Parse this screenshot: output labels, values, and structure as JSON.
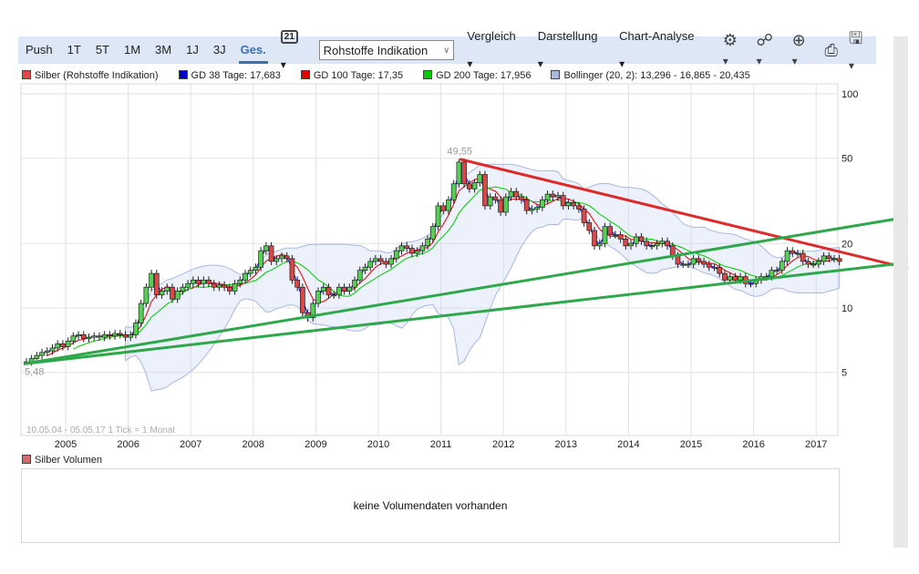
{
  "toolbar": {
    "ranges": [
      "Push",
      "1T",
      "5T",
      "1M",
      "3M",
      "1J",
      "3J",
      "Ges."
    ],
    "active": "Ges.",
    "calendar_day": "21",
    "select_value": "Rohstoffe Indikation",
    "menus": [
      "Vergleich",
      "Darstellung",
      "Chart-Analyse"
    ]
  },
  "legend": [
    {
      "label": "Silber (Rohstoffe Indikation)",
      "color": "#e04848"
    },
    {
      "label": "GD 38 Tage: 17,683",
      "color": "#0000cc"
    },
    {
      "label": "GD 100 Tage: 17,35",
      "color": "#e00000"
    },
    {
      "label": "GD 200 Tage: 17,956",
      "color": "#00cc00"
    },
    {
      "label": "Bollinger (20, 2): 13,296 - 16,865 - 20,435",
      "color": "#a8b8e0"
    }
  ],
  "volume": {
    "title": "Silber Volumen",
    "message": "keine Volumendaten vorhanden"
  },
  "chart_data": {
    "type": "candlestick",
    "scale": "log",
    "range_label": "10.05.04 - 05.05.17",
    "tick_label": "1 Tick = 1 Monat",
    "y_ticks": [
      100,
      50,
      20,
      10,
      5
    ],
    "x_ticks": [
      2005,
      2006,
      2007,
      2008,
      2009,
      2010,
      2011,
      2012,
      2013,
      2014,
      2015,
      2016,
      2017
    ],
    "max_label": "49,55",
    "max_value": 49.55,
    "max_date": 2011.3,
    "min_label": "5,48",
    "min_value": 5.48,
    "start": 2004.33,
    "monthly_close": [
      5.6,
      5.8,
      6.0,
      6.2,
      6.3,
      6.5,
      6.8,
      6.6,
      7.0,
      7.4,
      7.5,
      7.2,
      7.3,
      7.4,
      7.3,
      7.5,
      7.4,
      7.6,
      7.5,
      7.3,
      7.5,
      8.5,
      10.5,
      12.5,
      14.5,
      11.5,
      12.0,
      12.5,
      11.0,
      12.0,
      12.5,
      13.0,
      13.5,
      13.0,
      13.5,
      13.0,
      12.5,
      12.8,
      12.5,
      12.0,
      13.0,
      13.5,
      14.5,
      15.0,
      15.5,
      18.5,
      19.5,
      16.5,
      17.0,
      17.5,
      17.0,
      13.5,
      12.5,
      9.5,
      9.0,
      10.5,
      12.0,
      12.5,
      11.5,
      11.5,
      12.5,
      12.0,
      12.5,
      13.5,
      15.0,
      15.5,
      16.5,
      17.0,
      16.5,
      16.0,
      17.0,
      18.5,
      19.5,
      19.0,
      18.0,
      18.5,
      19.5,
      21.0,
      24.0,
      30.0,
      28.5,
      32.0,
      38.0,
      48.0,
      38.0,
      36.0,
      38.5,
      42.0,
      30.0,
      33.0,
      32.0,
      28.0,
      33.0,
      35.0,
      33.0,
      32.0,
      28.5,
      29.0,
      29.5,
      32.0,
      34.0,
      33.0,
      33.5,
      30.0,
      31.0,
      30.0,
      29.0,
      25.0,
      23.0,
      19.5,
      20.0,
      24.0,
      22.0,
      22.0,
      21.0,
      19.5,
      20.0,
      21.5,
      20.5,
      19.5,
      19.5,
      20.0,
      20.5,
      19.5,
      17.5,
      16.0,
      16.0,
      16.0,
      17.0,
      16.5,
      16.0,
      15.5,
      15.5,
      14.5,
      13.5,
      14.0,
      13.5,
      14.0,
      13.0,
      13.0,
      13.5,
      14.0,
      14.0,
      15.0,
      15.0,
      16.5,
      18.5,
      18.0,
      18.0,
      16.5,
      16.0,
      16.0,
      16.5,
      17.5,
      17.0,
      17.0,
      16.5
    ],
    "trendlines": [
      {
        "color": "#dd2b2b",
        "from": [
          2011.3,
          49.55
        ],
        "to": [
          2018.47,
          15.3
        ]
      },
      {
        "color": "#2ea84a",
        "from": [
          2004.33,
          5.48
        ],
        "to": [
          2018.47,
          26.6
        ]
      },
      {
        "color": "#2ea84a",
        "from": [
          2004.33,
          5.48
        ],
        "to": [
          2018.47,
          16.3
        ]
      }
    ]
  }
}
